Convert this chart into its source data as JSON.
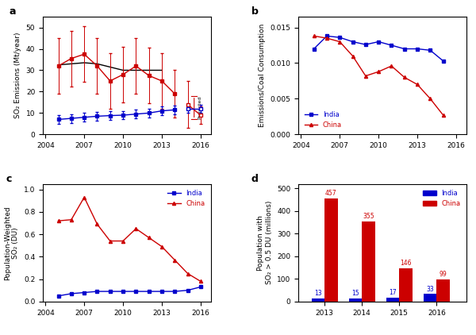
{
  "panel_a": {
    "years_china": [
      2005,
      2006,
      2007,
      2008,
      2009,
      2010,
      2011,
      2012,
      2013,
      2014,
      2015,
      2016
    ],
    "china_vals": [
      32.0,
      35.5,
      37.5,
      32.0,
      25.0,
      28.0,
      32.0,
      27.5,
      25.0,
      19.0,
      14.0,
      9.0
    ],
    "china_err": [
      13,
      13,
      13,
      13,
      13,
      13,
      13,
      13,
      13,
      11,
      11,
      4
    ],
    "years_india": [
      2005,
      2006,
      2007,
      2008,
      2009,
      2010,
      2011,
      2012,
      2013,
      2014,
      2015,
      2016
    ],
    "india_vals": [
      7.0,
      7.5,
      8.0,
      8.5,
      8.8,
      9.0,
      9.5,
      10.0,
      11.0,
      11.5,
      12.0,
      12.0
    ],
    "india_err": [
      2,
      2,
      2,
      2,
      2,
      2,
      2,
      2,
      2,
      2,
      2,
      2
    ],
    "years_black": [
      2005,
      2006,
      2007,
      2008,
      2009,
      2010,
      2011,
      2012,
      2013
    ],
    "black_vals": [
      32.5,
      33.0,
      33.5,
      33.0,
      31.5,
      30.0,
      30.0,
      30.0,
      30.0
    ],
    "ylabel": "SO₂ Emissions (Mt/year)",
    "ylim": [
      0,
      55
    ],
    "yticks": [
      0,
      10,
      20,
      30,
      40,
      50
    ],
    "xticks": [
      2004,
      2007,
      2010,
      2013,
      2016
    ]
  },
  "panel_b": {
    "years_india": [
      2005,
      2006,
      2007,
      2008,
      2009,
      2010,
      2011,
      2012,
      2013,
      2014,
      2015
    ],
    "india_vals": [
      0.012,
      0.0138,
      0.0136,
      0.013,
      0.0126,
      0.013,
      0.0125,
      0.012,
      0.012,
      0.0118,
      0.0103
    ],
    "years_china": [
      2005,
      2006,
      2007,
      2008,
      2009,
      2010,
      2011,
      2012,
      2013,
      2014,
      2015
    ],
    "china_vals": [
      0.0138,
      0.0135,
      0.013,
      0.011,
      0.0082,
      0.0088,
      0.0096,
      0.008,
      0.007,
      0.005,
      0.0027
    ],
    "ylabel": "Emissions/Coal Consumption",
    "ylim": [
      0,
      0.0165
    ],
    "yticks": [
      0.0,
      0.005,
      0.01,
      0.015
    ],
    "xticks": [
      2004,
      2007,
      2010,
      2013,
      2016
    ]
  },
  "panel_c": {
    "years_india": [
      2005,
      2006,
      2007,
      2008,
      2009,
      2010,
      2011,
      2012,
      2013,
      2014,
      2015,
      2016
    ],
    "india_vals": [
      0.05,
      0.07,
      0.08,
      0.09,
      0.09,
      0.09,
      0.09,
      0.09,
      0.09,
      0.09,
      0.1,
      0.13
    ],
    "years_china": [
      2005,
      2006,
      2007,
      2008,
      2009,
      2010,
      2011,
      2012,
      2013,
      2014,
      2015,
      2016
    ],
    "china_vals": [
      0.72,
      0.73,
      0.93,
      0.69,
      0.54,
      0.54,
      0.65,
      0.57,
      0.49,
      0.37,
      0.25,
      0.18
    ],
    "ylabel": "Population-Weighted\nSO₂ (DU)",
    "ylim": [
      0,
      1.05
    ],
    "yticks": [
      0.0,
      0.2,
      0.4,
      0.6,
      0.8,
      1.0
    ],
    "xticks": [
      2004,
      2007,
      2010,
      2013,
      2016
    ]
  },
  "panel_d": {
    "years": [
      2013,
      2014,
      2015,
      2016
    ],
    "india_vals": [
      13,
      15,
      17,
      33
    ],
    "china_vals": [
      457,
      355,
      146,
      99
    ],
    "ylabel": "Population with\nSO₂ > 0.5 DU (millions)",
    "ylim": [
      0,
      520
    ],
    "yticks": [
      0,
      100,
      200,
      300,
      400,
      500
    ],
    "xticks": [
      2013,
      2014,
      2015,
      2016
    ],
    "bar_width": 0.35
  },
  "india_color": "#0000CC",
  "china_color": "#CC0000",
  "black_color": "#000000"
}
